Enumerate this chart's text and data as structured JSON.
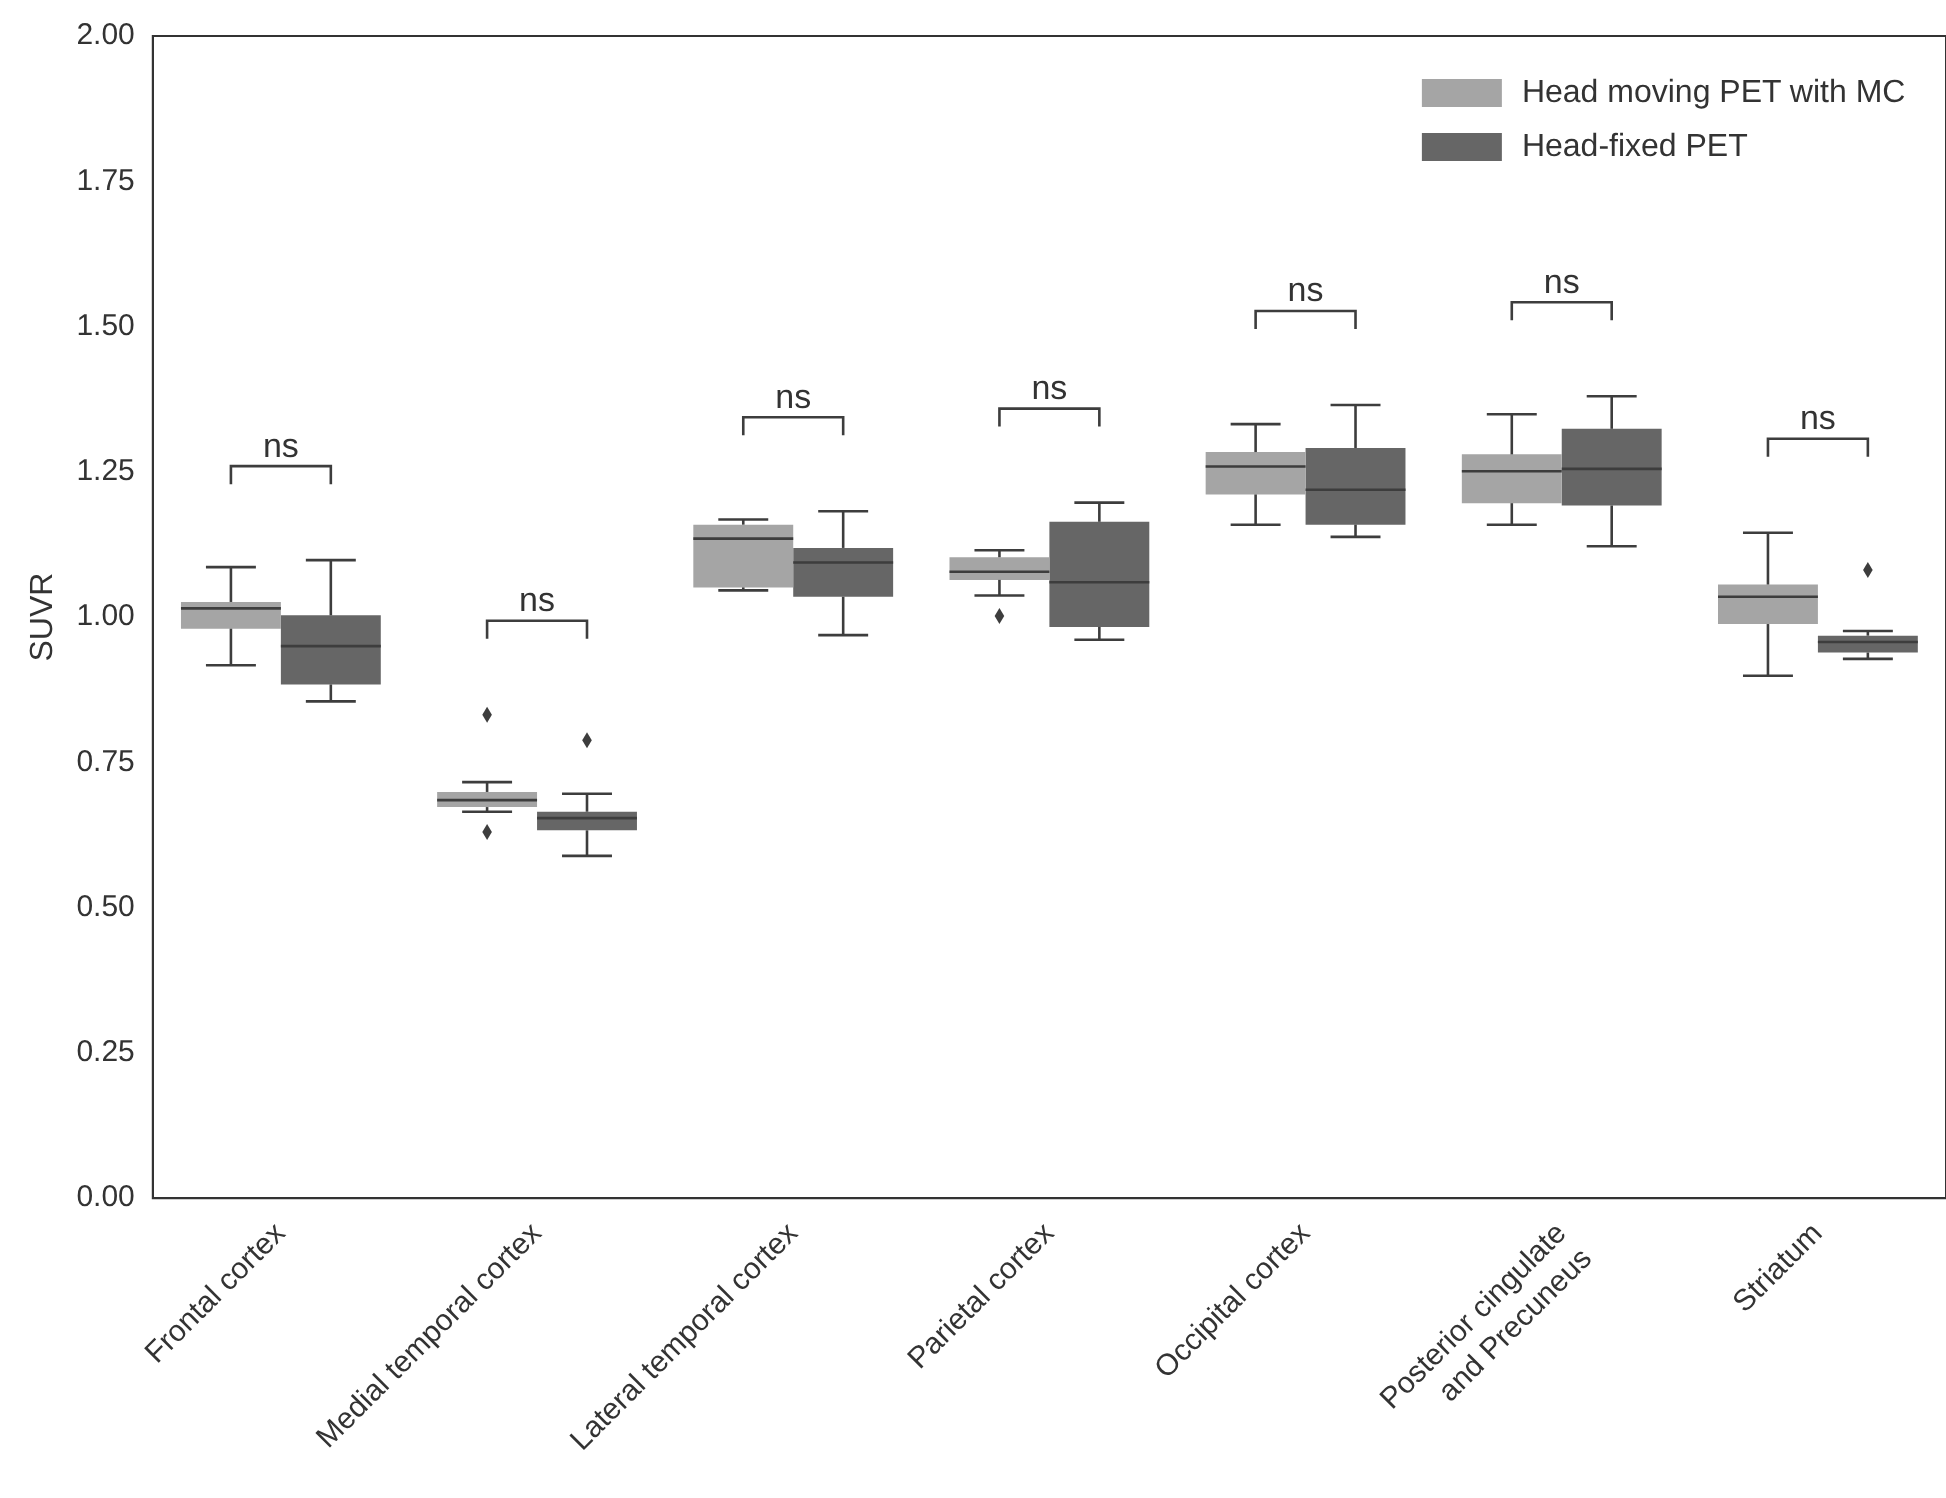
{
  "chart_data": {
    "type": "box",
    "ylabel": "SUVR",
    "categories": [
      "Frontal cortex",
      "Medial temporal cortex",
      "Lateral temporal cortex",
      "Parietal cortex",
      "Occipital cortex",
      "Posterior cingulate and Precuneus",
      "Striatum"
    ],
    "ylim": [
      0,
      2
    ],
    "yticks": [
      {
        "value": 0,
        "label": "0.00"
      },
      {
        "value": 0.25,
        "label": "0.25"
      },
      {
        "value": 0.5,
        "label": "0.50"
      },
      {
        "value": 0.75,
        "label": "0.75"
      },
      {
        "value": 1,
        "label": "1.00"
      },
      {
        "value": 1.25,
        "label": "1.25"
      },
      {
        "value": 1.5,
        "label": "1.50"
      },
      {
        "value": 1.75,
        "label": "1.75"
      },
      {
        "value": 2,
        "label": "2.00"
      }
    ],
    "grid": false,
    "legend": "top right",
    "marker": "diamond",
    "series": [
      {
        "name": "Head moving PET with MC",
        "color": "#a5a5a5",
        "boxes": [
          {
            "low": 0.917,
            "q1": 0.98,
            "median": 1.015,
            "q3": 1.026,
            "high": 1.086
          },
          {
            "low": 0.665,
            "q1": 0.673,
            "median": 0.685,
            "q3": 0.699,
            "high": 0.716,
            "outliers": [
              0.832,
              0.63
            ]
          },
          {
            "low": 1.046,
            "q1": 1.051,
            "median": 1.135,
            "q3": 1.159,
            "high": 1.168
          },
          {
            "low": 1.037,
            "q1": 1.064,
            "median": 1.078,
            "q3": 1.103,
            "high": 1.115,
            "outliers": [
              1.002
            ]
          },
          {
            "low": 1.159,
            "q1": 1.211,
            "median": 1.259,
            "q3": 1.284,
            "high": 1.332
          },
          {
            "low": 1.159,
            "q1": 1.196,
            "median": 1.251,
            "q3": 1.28,
            "high": 1.349
          },
          {
            "low": 0.899,
            "q1": 0.988,
            "median": 1.035,
            "q3": 1.056,
            "high": 1.145
          }
        ]
      },
      {
        "name": "Head-fixed PET",
        "color": "#666666",
        "boxes": [
          {
            "low": 0.855,
            "q1": 0.884,
            "median": 0.95,
            "q3": 1.003,
            "high": 1.098
          },
          {
            "low": 0.589,
            "q1": 0.633,
            "median": 0.654,
            "q3": 0.665,
            "high": 0.696,
            "outliers": [
              0.788
            ]
          },
          {
            "low": 0.969,
            "q1": 1.035,
            "median": 1.094,
            "q3": 1.119,
            "high": 1.182
          },
          {
            "low": 0.961,
            "q1": 0.983,
            "median": 1.06,
            "q3": 1.164,
            "high": 1.197
          },
          {
            "low": 1.138,
            "q1": 1.159,
            "median": 1.219,
            "q3": 1.291,
            "high": 1.365
          },
          {
            "low": 1.122,
            "q1": 1.192,
            "median": 1.255,
            "q3": 1.324,
            "high": 1.38
          },
          {
            "low": 0.928,
            "q1": 0.939,
            "median": 0.957,
            "q3": 0.968,
            "high": 0.976,
            "outliers": [
              1.081
            ]
          }
        ]
      }
    ],
    "annotations": [
      "ns",
      "ns",
      "ns",
      "ns",
      "ns",
      "ns",
      "ns"
    ]
  }
}
